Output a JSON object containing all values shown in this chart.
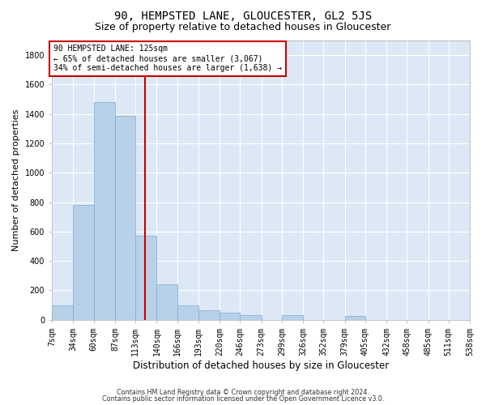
{
  "title1": "90, HEMPSTED LANE, GLOUCESTER, GL2 5JS",
  "title2": "Size of property relative to detached houses in Gloucester",
  "xlabel": "Distribution of detached houses by size in Gloucester",
  "ylabel": "Number of detached properties",
  "bin_edges": [
    7,
    34,
    60,
    87,
    113,
    140,
    166,
    193,
    220,
    246,
    273,
    299,
    326,
    352,
    379,
    405,
    432,
    458,
    485,
    511,
    538
  ],
  "bar_heights": [
    100,
    780,
    1480,
    1390,
    570,
    240,
    100,
    65,
    50,
    30,
    0,
    30,
    0,
    0,
    25,
    0,
    0,
    0,
    0,
    0
  ],
  "bar_color": "#b8d0e8",
  "bar_edge_color": "#7aadd4",
  "vline_x": 125,
  "vline_color": "#cc0000",
  "ylim": [
    0,
    1900
  ],
  "yticks": [
    0,
    200,
    400,
    600,
    800,
    1000,
    1200,
    1400,
    1600,
    1800
  ],
  "bg_color": "#dce8f5",
  "fig_bg_color": "#ffffff",
  "annotation_text": "90 HEMPSTED LANE: 125sqm\n← 65% of detached houses are smaller (3,067)\n34% of semi-detached houses are larger (1,638) →",
  "annotation_box_color": "#ffffff",
  "annotation_box_edge": "#cc0000",
  "footer1": "Contains HM Land Registry data © Crown copyright and database right 2024.",
  "footer2": "Contains public sector information licensed under the Open Government Licence v3.0.",
  "grid_color": "#ffffff",
  "title1_fontsize": 10,
  "title2_fontsize": 9,
  "xlabel_fontsize": 8.5,
  "ylabel_fontsize": 8,
  "tick_fontsize": 7,
  "annot_fontsize": 7
}
